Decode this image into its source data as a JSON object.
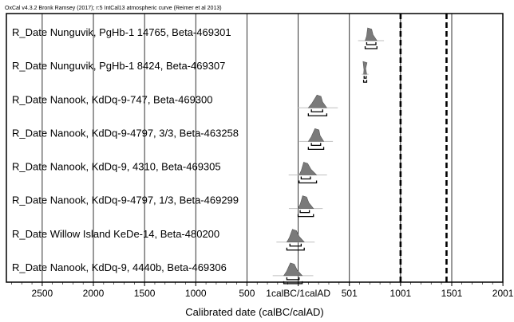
{
  "chart_data": {
    "type": "range-plot",
    "header": "OxCal v4.3.2 Bronk Ramsey (2017); r:5 IntCal13 atmospheric curve (Reimer et al 2013)",
    "xlabel": "Calibrated date (calBC/calAD)",
    "xlim": [
      -2850,
      2000
    ],
    "ticks": [
      {
        "value": -2500,
        "label": "2500"
      },
      {
        "value": -2000,
        "label": "2000"
      },
      {
        "value": -1500,
        "label": "1500"
      },
      {
        "value": -1000,
        "label": "1000"
      },
      {
        "value": -500,
        "label": "500"
      },
      {
        "value": 1,
        "label": "1calBC/1calAD"
      },
      {
        "value": 501,
        "label": "501"
      },
      {
        "value": 1001,
        "label": "1001"
      },
      {
        "value": 1501,
        "label": "1501"
      },
      {
        "value": 2001,
        "label": "2001"
      }
    ],
    "reference_lines": [
      1001,
      1450
    ],
    "grid": true,
    "series": [
      {
        "name": "R_Date Nunguvik, PgHb-1 14765, Beta-469301",
        "peak": 695,
        "range68": [
          670,
          760
        ],
        "range95": [
          655,
          770
        ]
      },
      {
        "name": "R_Date Nunguvik, PgHb-1 8424, Beta-469307",
        "peak": 650,
        "range68": [
          645,
          665
        ],
        "range95": [
          640,
          670
        ]
      },
      {
        "name": "R_Date Nanook, KdDq-9-747, Beta-469300",
        "peak": 200,
        "range68": [
          130,
          240
        ],
        "range95": [
          100,
          280
        ]
      },
      {
        "name": "R_Date Nanook, KdDq-9-4797, 3/3, Beta-463258",
        "peak": 180,
        "range68": [
          130,
          220
        ],
        "range95": [
          100,
          250
        ]
      },
      {
        "name": "R_Date Nanook, KdDq-9, 4310, Beta-469305",
        "peak": 70,
        "range68": [
          30,
          120
        ],
        "range95": [
          10,
          180
        ]
      },
      {
        "name": "R_Date Nanook, KdDq-9-4797, 1/3, Beta-469299",
        "peak": 60,
        "range68": [
          20,
          110
        ],
        "range95": [
          0,
          150
        ]
      },
      {
        "name": "R_Date Willow Island KeDe-14, Beta-480200",
        "peak": -40,
        "range68": [
          -80,
          30
        ],
        "range95": [
          -110,
          60
        ]
      },
      {
        "name": "R_Date Nanook, KdDq-9, 4440b, Beta-469306",
        "peak": -60,
        "range68": [
          -110,
          10
        ],
        "range95": [
          -140,
          40
        ]
      }
    ]
  }
}
